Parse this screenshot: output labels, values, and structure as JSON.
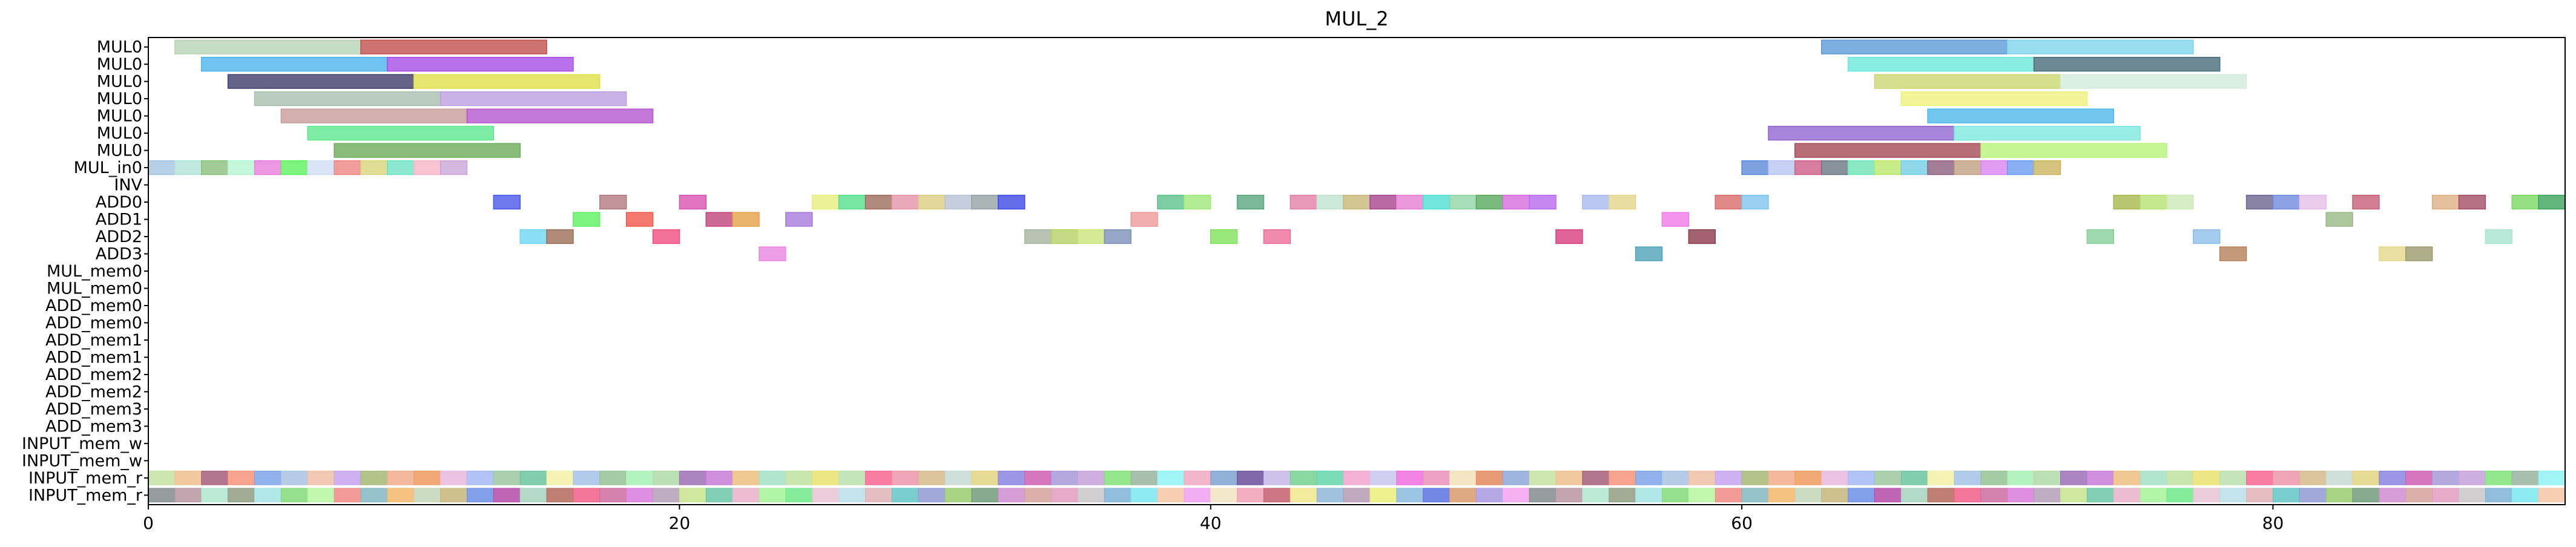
{
  "chart_data": {
    "type": "gantt",
    "title": "MUL_2",
    "xlabel": "",
    "ylabel": "",
    "xlim": [
      0,
      91
    ],
    "x_ticks": [
      0,
      20,
      40,
      60,
      80
    ],
    "grid": false,
    "rows": [
      "MUL0",
      "MUL0",
      "MUL0",
      "MUL0",
      "MUL0",
      "MUL0",
      "MUL0",
      "MUL_in0",
      "INV",
      "ADD0",
      "ADD1",
      "ADD2",
      "ADD3",
      "MUL_mem0",
      "MUL_mem0",
      "ADD_mem0",
      "ADD_mem0",
      "ADD_mem1",
      "ADD_mem1",
      "ADD_mem2",
      "ADD_mem2",
      "ADD_mem3",
      "ADD_mem3",
      "INPUT_mem_w",
      "INPUT_mem_w",
      "INPUT_mem_r",
      "INPUT_mem_r"
    ],
    "bars": [
      {
        "row": 0,
        "start": 1,
        "end": 8,
        "color": "#b9d3b6"
      },
      {
        "row": 0,
        "start": 8,
        "end": 15,
        "color": "#c0504d"
      },
      {
        "row": 0,
        "start": 63,
        "end": 70,
        "color": "#5b9bd5"
      },
      {
        "row": 0,
        "start": 70,
        "end": 77,
        "color": "#7fd4ec"
      },
      {
        "row": 1,
        "start": 2,
        "end": 9,
        "color": "#4db5ef"
      },
      {
        "row": 1,
        "start": 9,
        "end": 16,
        "color": "#a84ce6"
      },
      {
        "row": 1,
        "start": 64,
        "end": 71,
        "color": "#6ce8dc"
      },
      {
        "row": 1,
        "start": 71,
        "end": 78,
        "color": "#4a6b7c"
      },
      {
        "row": 2,
        "start": 3,
        "end": 10,
        "color": "#3e3c69"
      },
      {
        "row": 2,
        "start": 10,
        "end": 17,
        "color": "#e0e04a"
      },
      {
        "row": 2,
        "start": 65,
        "end": 72,
        "color": "#cbd770"
      },
      {
        "row": 2,
        "start": 72,
        "end": 79,
        "color": "#d2ecdb"
      },
      {
        "row": 3,
        "start": 4,
        "end": 11,
        "color": "#a7bfae"
      },
      {
        "row": 3,
        "start": 11,
        "end": 18,
        "color": "#bc9fe0"
      },
      {
        "row": 3,
        "start": 66,
        "end": 73,
        "color": "#eef27d"
      },
      {
        "row": 4,
        "start": 5,
        "end": 12,
        "color": "#c99b9b"
      },
      {
        "row": 4,
        "start": 12,
        "end": 19,
        "color": "#b455cc"
      },
      {
        "row": 4,
        "start": 67,
        "end": 74,
        "color": "#4db8e8"
      },
      {
        "row": 5,
        "start": 6,
        "end": 13,
        "color": "#5ce88f"
      },
      {
        "row": 5,
        "start": 61,
        "end": 68,
        "color": "#9166d1"
      },
      {
        "row": 5,
        "start": 68,
        "end": 75,
        "color": "#7de8de"
      },
      {
        "row": 6,
        "start": 7,
        "end": 14,
        "color": "#6cab5a"
      },
      {
        "row": 6,
        "start": 62,
        "end": 69,
        "color": "#a64a55"
      },
      {
        "row": 6,
        "start": 69,
        "end": 76,
        "color": "#b8f27a"
      },
      {
        "row": 7,
        "start": 0,
        "end": 1,
        "color": "#a5c3e3"
      },
      {
        "row": 7,
        "start": 1,
        "end": 2,
        "color": "#b3e3d8"
      },
      {
        "row": 7,
        "start": 2,
        "end": 3,
        "color": "#8abe7d"
      },
      {
        "row": 7,
        "start": 3,
        "end": 4,
        "color": "#b8f5d3"
      },
      {
        "row": 7,
        "start": 4,
        "end": 5,
        "color": "#e77edb"
      },
      {
        "row": 7,
        "start": 5,
        "end": 6,
        "color": "#5ef05e"
      },
      {
        "row": 7,
        "start": 6,
        "end": 7,
        "color": "#d0dff5"
      },
      {
        "row": 7,
        "start": 7,
        "end": 8,
        "color": "#ee8484"
      },
      {
        "row": 7,
        "start": 8,
        "end": 9,
        "color": "#d8d57a"
      },
      {
        "row": 7,
        "start": 9,
        "end": 10,
        "color": "#6fe2c2"
      },
      {
        "row": 7,
        "start": 10,
        "end": 11,
        "color": "#f9b4c8"
      },
      {
        "row": 7,
        "start": 11,
        "end": 12,
        "color": "#c9a6d6"
      },
      {
        "row": 7,
        "start": 60,
        "end": 61,
        "color": "#5c88d8"
      },
      {
        "row": 7,
        "start": 61,
        "end": 62,
        "color": "#b9c4f2"
      },
      {
        "row": 7,
        "start": 62,
        "end": 63,
        "color": "#cd5d84"
      },
      {
        "row": 7,
        "start": 63,
        "end": 64,
        "color": "#6b7581"
      },
      {
        "row": 7,
        "start": 64,
        "end": 65,
        "color": "#6de4b4"
      },
      {
        "row": 7,
        "start": 65,
        "end": 66,
        "color": "#bde76a"
      },
      {
        "row": 7,
        "start": 66,
        "end": 67,
        "color": "#73cfe6"
      },
      {
        "row": 7,
        "start": 67,
        "end": 68,
        "color": "#8d5e7e"
      },
      {
        "row": 7,
        "start": 68,
        "end": 69,
        "color": "#c2a082"
      },
      {
        "row": 7,
        "start": 69,
        "end": 70,
        "color": "#d885ee"
      },
      {
        "row": 7,
        "start": 70,
        "end": 71,
        "color": "#6b9cf0"
      },
      {
        "row": 7,
        "start": 71,
        "end": 72,
        "color": "#c9b55e"
      },
      {
        "row": 9,
        "start": 13,
        "end": 14,
        "color": "#4858e8"
      },
      {
        "row": 9,
        "start": 17,
        "end": 18,
        "color": "#b07980"
      },
      {
        "row": 9,
        "start": 20,
        "end": 21,
        "color": "#da52b0"
      },
      {
        "row": 9,
        "start": 25,
        "end": 26,
        "color": "#e7ee7e"
      },
      {
        "row": 9,
        "start": 26,
        "end": 27,
        "color": "#54e08f"
      },
      {
        "row": 9,
        "start": 27,
        "end": 28,
        "color": "#9c6b5c"
      },
      {
        "row": 9,
        "start": 28,
        "end": 29,
        "color": "#e594a9"
      },
      {
        "row": 9,
        "start": 29,
        "end": 30,
        "color": "#dccd82"
      },
      {
        "row": 9,
        "start": 30,
        "end": 31,
        "color": "#b8c2d6"
      },
      {
        "row": 9,
        "start": 31,
        "end": 32,
        "color": "#95a1a3"
      },
      {
        "row": 9,
        "start": 32,
        "end": 33,
        "color": "#4049e6"
      },
      {
        "row": 9,
        "start": 38,
        "end": 39,
        "color": "#5ec28c"
      },
      {
        "row": 9,
        "start": 39,
        "end": 40,
        "color": "#9fe77a"
      },
      {
        "row": 9,
        "start": 41,
        "end": 42,
        "color": "#5aa57e"
      },
      {
        "row": 9,
        "start": 43,
        "end": 44,
        "color": "#e37fa6"
      },
      {
        "row": 9,
        "start": 44,
        "end": 45,
        "color": "#bfe2cf"
      },
      {
        "row": 9,
        "start": 45,
        "end": 46,
        "color": "#c9b67b"
      },
      {
        "row": 9,
        "start": 46,
        "end": 47,
        "color": "#a6438d"
      },
      {
        "row": 9,
        "start": 47,
        "end": 48,
        "color": "#e67ed4"
      },
      {
        "row": 9,
        "start": 48,
        "end": 49,
        "color": "#4fe0d5"
      },
      {
        "row": 9,
        "start": 49,
        "end": 50,
        "color": "#8ed6a8"
      },
      {
        "row": 9,
        "start": 50,
        "end": 51,
        "color": "#5aa95f"
      },
      {
        "row": 9,
        "start": 51,
        "end": 52,
        "color": "#d66cdd"
      },
      {
        "row": 9,
        "start": 52,
        "end": 53,
        "color": "#b76af0"
      },
      {
        "row": 9,
        "start": 54,
        "end": 55,
        "color": "#a9b9f3"
      },
      {
        "row": 9,
        "start": 55,
        "end": 56,
        "color": "#e2d68b"
      },
      {
        "row": 9,
        "start": 59,
        "end": 60,
        "color": "#d86c6c"
      },
      {
        "row": 9,
        "start": 60,
        "end": 61,
        "color": "#7fc4ef"
      },
      {
        "row": 9,
        "start": 74,
        "end": 75,
        "color": "#a8b84c"
      },
      {
        "row": 9,
        "start": 75,
        "end": 76,
        "color": "#b6e272"
      },
      {
        "row": 9,
        "start": 76,
        "end": 77,
        "color": "#cde8b4"
      },
      {
        "row": 9,
        "start": 79,
        "end": 80,
        "color": "#6c6590"
      },
      {
        "row": 9,
        "start": 80,
        "end": 81,
        "color": "#7189e0"
      },
      {
        "row": 9,
        "start": 81,
        "end": 82,
        "color": "#e5bde8"
      },
      {
        "row": 9,
        "start": 83,
        "end": 84,
        "color": "#c55e78"
      },
      {
        "row": 9,
        "start": 86,
        "end": 87,
        "color": "#ddb083"
      },
      {
        "row": 9,
        "start": 87,
        "end": 88,
        "color": "#a34c67"
      },
      {
        "row": 9,
        "start": 89,
        "end": 90,
        "color": "#7ad864"
      },
      {
        "row": 9,
        "start": 90,
        "end": 91,
        "color": "#3aa35c"
      },
      {
        "row": 10,
        "start": 16,
        "end": 17,
        "color": "#5cf060"
      },
      {
        "row": 10,
        "start": 18,
        "end": 19,
        "color": "#f0584b"
      },
      {
        "row": 10,
        "start": 21,
        "end": 22,
        "color": "#c0437b"
      },
      {
        "row": 10,
        "start": 22,
        "end": 23,
        "color": "#e6a147"
      },
      {
        "row": 10,
        "start": 24,
        "end": 25,
        "color": "#a679d9"
      },
      {
        "row": 10,
        "start": 37,
        "end": 38,
        "color": "#ef9898"
      },
      {
        "row": 10,
        "start": 57,
        "end": 58,
        "color": "#f07ae7"
      },
      {
        "row": 10,
        "start": 82,
        "end": 83,
        "color": "#98b883"
      },
      {
        "row": 11,
        "start": 14,
        "end": 15,
        "color": "#6dd6f2"
      },
      {
        "row": 11,
        "start": 15,
        "end": 16,
        "color": "#9b6e58"
      },
      {
        "row": 11,
        "start": 19,
        "end": 20,
        "color": "#f04e80"
      },
      {
        "row": 11,
        "start": 33,
        "end": 34,
        "color": "#a6b3a0"
      },
      {
        "row": 11,
        "start": 34,
        "end": 35,
        "color": "#b5cf65"
      },
      {
        "row": 11,
        "start": 35,
        "end": 36,
        "color": "#cce479"
      },
      {
        "row": 11,
        "start": 36,
        "end": 37,
        "color": "#7a90b8"
      },
      {
        "row": 11,
        "start": 40,
        "end": 41,
        "color": "#7ee25c"
      },
      {
        "row": 11,
        "start": 42,
        "end": 43,
        "color": "#ee6e98"
      },
      {
        "row": 11,
        "start": 53,
        "end": 54,
        "color": "#d93d7f"
      },
      {
        "row": 11,
        "start": 58,
        "end": 59,
        "color": "#8c3a4f"
      },
      {
        "row": 11,
        "start": 73,
        "end": 74,
        "color": "#86cf98"
      },
      {
        "row": 11,
        "start": 77,
        "end": 78,
        "color": "#8dbde8"
      },
      {
        "row": 11,
        "start": 88,
        "end": 89,
        "color": "#a8e3cf"
      },
      {
        "row": 12,
        "start": 23,
        "end": 24,
        "color": "#ea86e0"
      },
      {
        "row": 12,
        "start": 56,
        "end": 57,
        "color": "#4ea2b8"
      },
      {
        "row": 12,
        "start": 78,
        "end": 79,
        "color": "#b58058"
      },
      {
        "row": 12,
        "start": 84,
        "end": 85,
        "color": "#e2d78a"
      },
      {
        "row": 12,
        "start": 85,
        "end": 86,
        "color": "#9c9a6d"
      }
    ],
    "input_stripes": {
      "rows": [
        25,
        26
      ],
      "start": 0,
      "end": 91,
      "colors_a": [
        "#c6e2a1",
        "#f3f0a7",
        "#c5dad2",
        "#f5a3cf",
        "#a6b876",
        "#a4e0c7",
        "#8ff2f5",
        "#f0c08e",
        "#a6c2e6",
        "#e2d483",
        "#c9c6ef",
        "#f2ad8c",
        "#c0e2a0",
        "#f0a8bf",
        "#a35d78",
        "#95c294",
        "#8c82e0",
        "#f06ee0",
        "#ef9a5e",
        "#ebe26e",
        "#7ea2d0",
        "#f79379",
        "#a7f0b6",
        "#cf5fb2",
        "#ea90b8",
        "#e9b7dd",
        "#b8e0ad",
        "#6a4e9b",
        "#7ca3e8",
        "#b2d9a8",
        "#a79ad8",
        "#f4e0b8",
        "#a3b9f6",
        "#f76592",
        "#c5b7e7",
        "#a9c2e0",
        "#9c6fb7",
        "#c7a0da",
        "#e3885d",
        "#9dc8a0",
        "#ec95a8",
        "#74d090",
        "#eec0a4",
        "#c77bd6",
        "#82e37a",
        "#8ea8da",
        "#6bc49f",
        "#d5b98b",
        "#64d7ac",
        "#c6a3f0",
        "#eebd7f",
        "#99b4a0"
      ],
      "colors_b": [
        "#f08a85",
        "#e9b2c8",
        "#7be8f0",
        "#848c8c",
        "#b5695b",
        "#9bcb6e",
        "#b79bb3",
        "#82b7c2",
        "#a4f39a",
        "#f4c7a4",
        "#b895a2",
        "#f15e89",
        "#729a7a",
        "#e9ee79",
        "#f5b76c",
        "#70e98a",
        "#ef9ff0",
        "#b0e6d0",
        "#ce6da0",
        "#cf8ccf",
        "#8bbbde",
        "#c3d5b8",
        "#e6c4d1",
        "#f1e5c1",
        "#8f9d81",
        "#d97bdb",
        "#d6a29b",
        "#5b72e2",
        "#c5b67b",
        "#b8dfe7",
        "#f2a0b7",
        "#a3e3e3",
        "#b4a0b8",
        "#e29cbe",
        "#d99b6d",
        "#6c8ee6",
        "#dfb2b6",
        "#c55e6e",
        "#82da7a",
        "#c6e48c",
        "#c9c6c7",
        "#a89ae0",
        "#b54aa8",
        "#63c6c6",
        "#f0e68c",
        "#b7f6a2",
        "#6cc7a9",
        "#7cb3d5",
        "#f3a3ef",
        "#a6d3c0",
        "#8f9ad3",
        "#8fb7d8"
      ]
    }
  }
}
